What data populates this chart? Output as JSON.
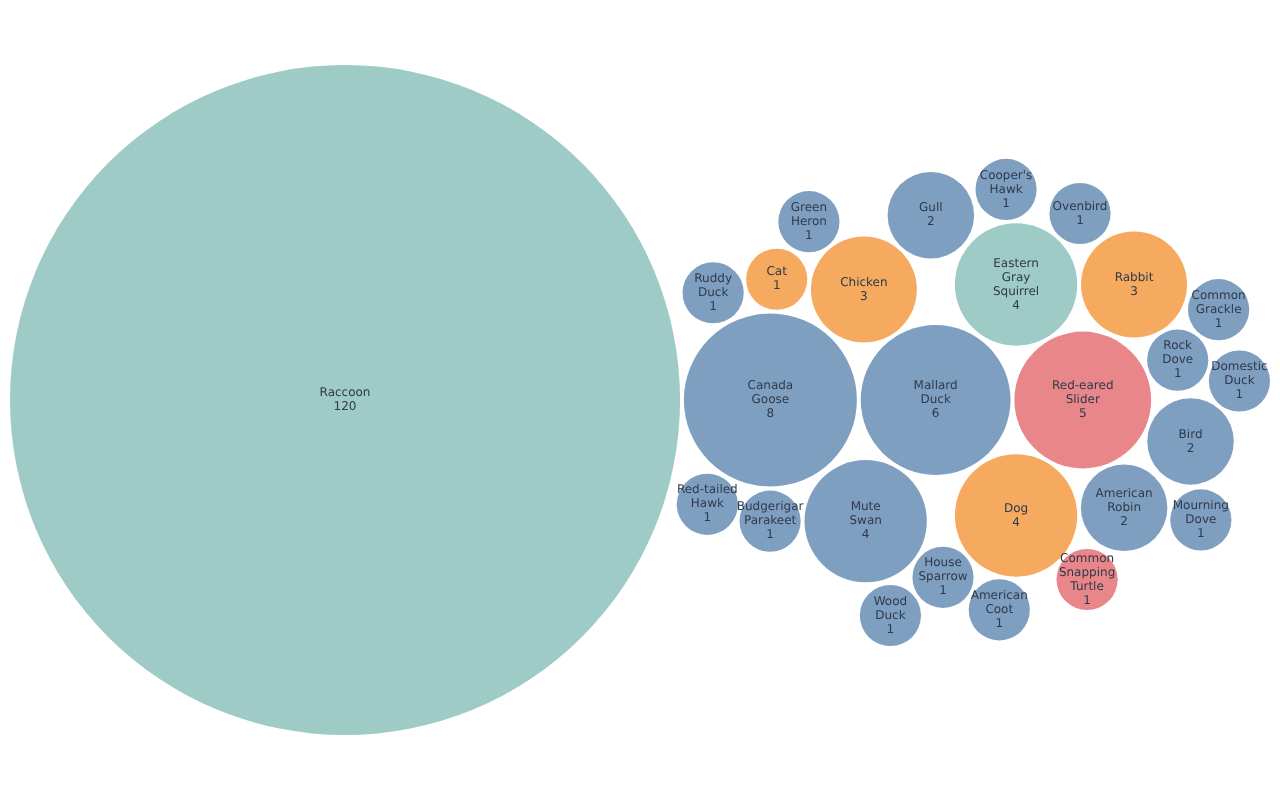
{
  "chart_data": {
    "type": "other",
    "categories": [
      "Raccoon",
      "Eastern Gray Squirrel",
      "Dog",
      "Mallard Duck",
      "Rock Dove",
      "House Sparrow",
      "Cat",
      "Chicken",
      "Budgerigar Parakeet",
      "Common Snapping Turtle",
      "Ovenbird",
      "Rabbit",
      "Domestic Duck",
      "American Coot",
      "American Robin",
      "Cooper's Hawk",
      "Common Grackle",
      "Bird",
      "Mute Swan",
      "Green Heron",
      "Canada Goose",
      "Red-eared Slider",
      "Mourning Dove",
      "Gull",
      "Ruddy Duck",
      "Wood Duck",
      "Red-tailed Hawk"
    ],
    "values": [
      120,
      4,
      4,
      6,
      1,
      1,
      1,
      3,
      1,
      1,
      1,
      3,
      1,
      1,
      2,
      1,
      1,
      2,
      4,
      1,
      8,
      5,
      1,
      2,
      1,
      1,
      1
    ],
    "colors": [
      "#9ecbc6",
      "#9ecbc6",
      "#f5aa5f",
      "#7f9fc1",
      "#7f9fc1",
      "#7f9fc1",
      "#f5aa5f",
      "#f5aa5f",
      "#7f9fc1",
      "#e8868a",
      "#7f9fc1",
      "#f5aa5f",
      "#7f9fc1",
      "#7f9fc1",
      "#7f9fc1",
      "#7f9fc1",
      "#7f9fc1",
      "#7f9fc1",
      "#7f9fc1",
      "#7f9fc1",
      "#7f9fc1",
      "#e8868a",
      "#7f9fc1",
      "#7f9fc1",
      "#7f9fc1",
      "#7f9fc1",
      "#7f9fc1"
    ],
    "data_labels": true
  }
}
